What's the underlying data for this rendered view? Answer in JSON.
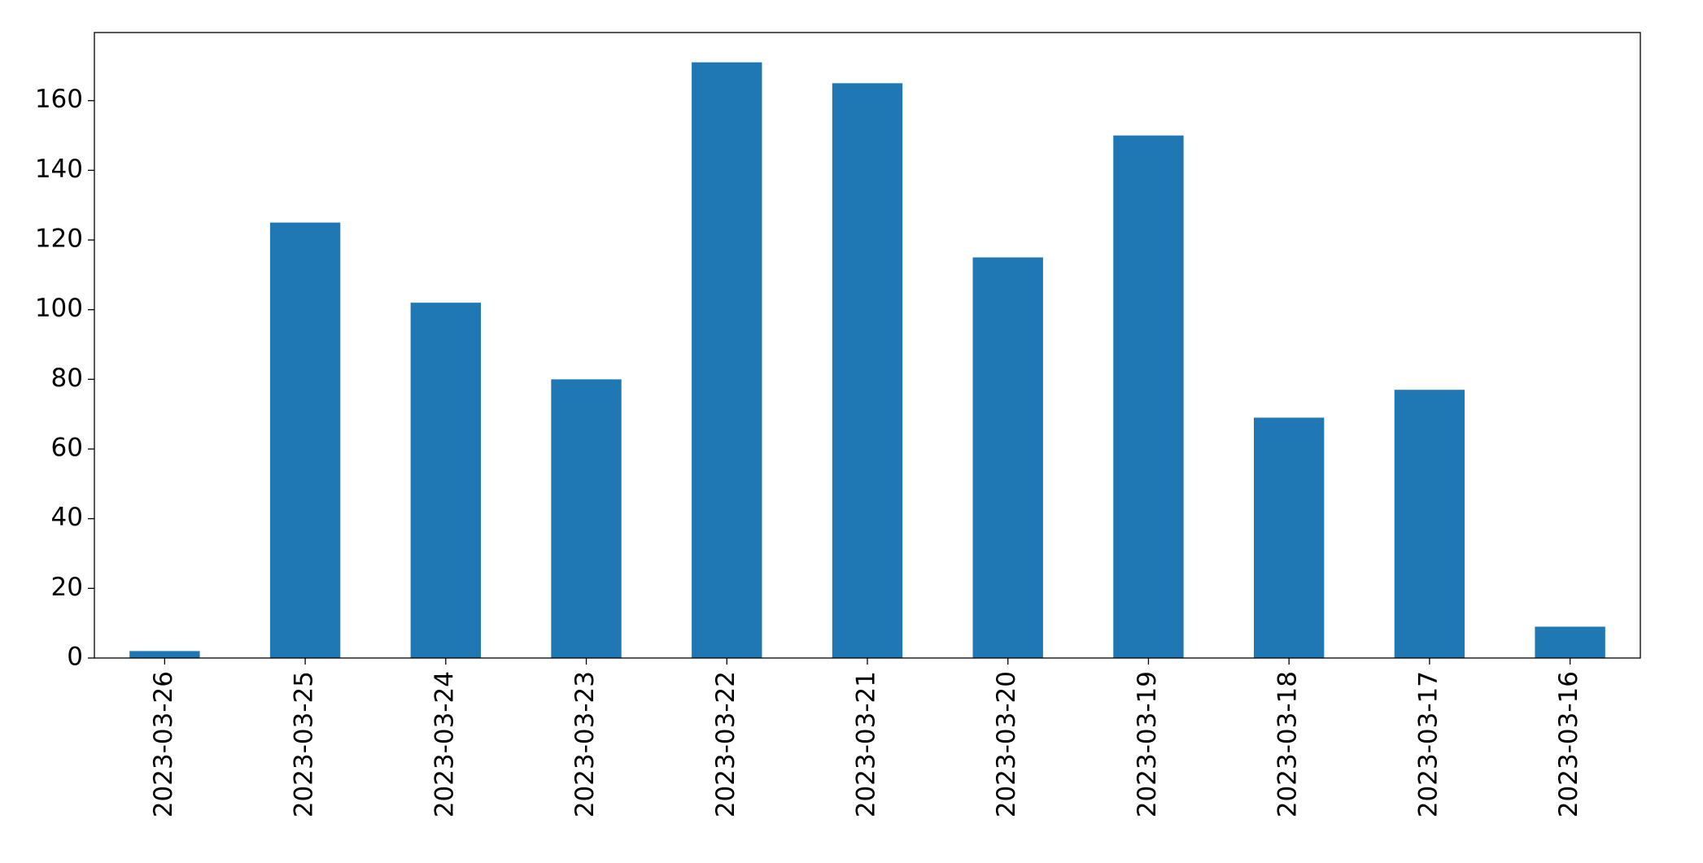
{
  "chart_data": {
    "type": "bar",
    "categories": [
      "2023-03-26",
      "2023-03-25",
      "2023-03-24",
      "2023-03-23",
      "2023-03-22",
      "2023-03-21",
      "2023-03-20",
      "2023-03-19",
      "2023-03-18",
      "2023-03-17",
      "2023-03-16"
    ],
    "values": [
      2,
      125,
      102,
      80,
      171,
      165,
      115,
      150,
      69,
      77,
      9
    ],
    "color": "#1f77b4",
    "ylim": [
      0,
      179.55
    ],
    "yticks": [
      0,
      20,
      40,
      60,
      80,
      100,
      120,
      140,
      160
    ],
    "grid": false
  }
}
